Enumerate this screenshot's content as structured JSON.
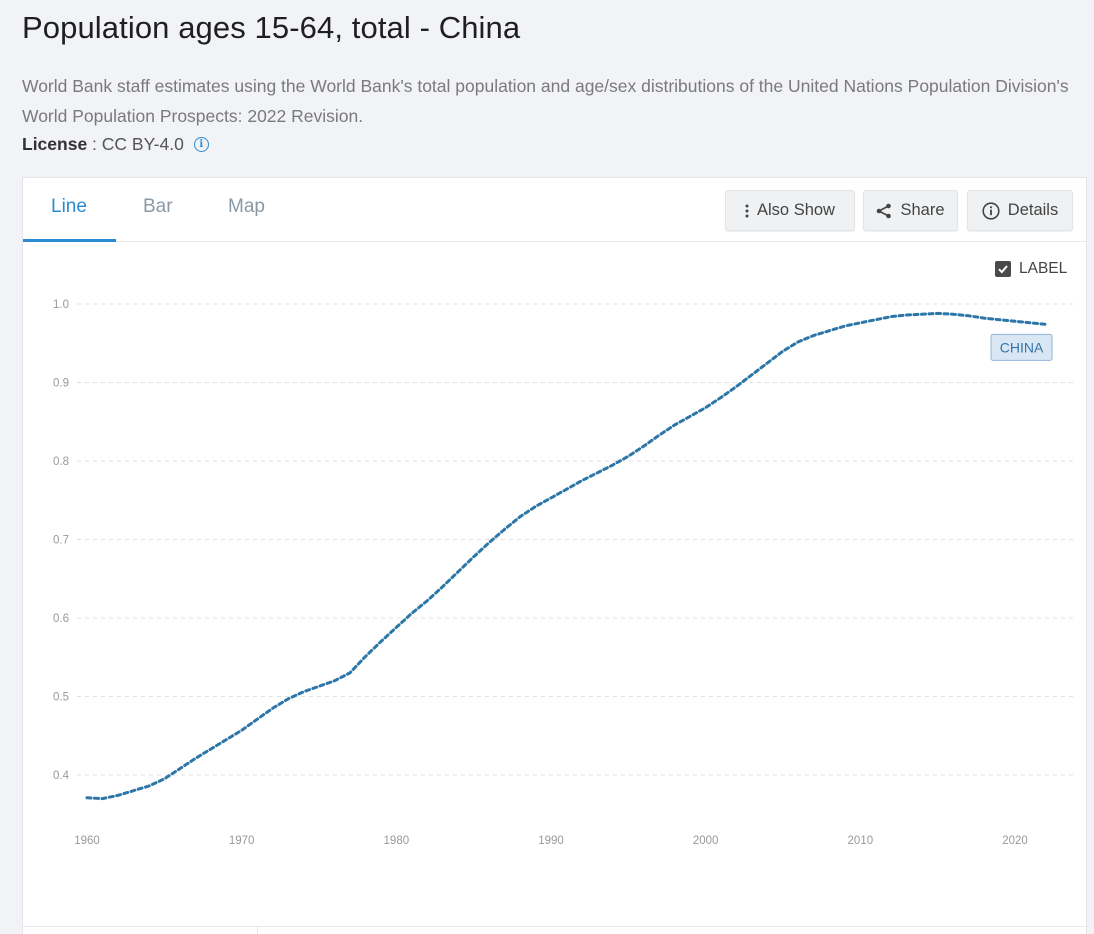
{
  "page": {
    "title": "Population ages 15-64, total - China",
    "description": "World Bank staff estimates using the World Bank's total population and age/sex distributions of the United Nations Population Division's World Population Prospects: 2022 Revision.",
    "license_label": "License",
    "license_sep": " : ",
    "license_value": "CC BY-4.0",
    "info_glyph": "i"
  },
  "tabs": [
    {
      "label": "Line",
      "active": true
    },
    {
      "label": "Bar",
      "active": false
    },
    {
      "label": "Map",
      "active": false
    }
  ],
  "toolbar": {
    "also_show": "Also Show",
    "share": "Share",
    "details": "Details"
  },
  "label_toggle": {
    "text": "LABEL",
    "checked": true
  },
  "colors": {
    "accent": "#2a8bd3",
    "series": "#2c76a8"
  },
  "chart_data": {
    "type": "line",
    "title": "",
    "xlabel": "",
    "ylabel": "",
    "xlim": [
      1960,
      2022
    ],
    "ylim": [
      0.34,
      1.03
    ],
    "yticks": [
      "0.4",
      "0.5",
      "0.6",
      "0.7",
      "0.8",
      "0.9",
      "1.0"
    ],
    "xticks": [
      "1960",
      "1970",
      "1980",
      "1990",
      "2000",
      "2010",
      "2020"
    ],
    "grid": true,
    "series": [
      {
        "name": "CHINA",
        "x": [
          1960,
          1961,
          1962,
          1963,
          1964,
          1965,
          1966,
          1967,
          1968,
          1969,
          1970,
          1971,
          1972,
          1973,
          1974,
          1975,
          1976,
          1977,
          1978,
          1979,
          1980,
          1981,
          1982,
          1983,
          1984,
          1985,
          1986,
          1987,
          1988,
          1989,
          1990,
          1991,
          1992,
          1993,
          1994,
          1995,
          1996,
          1997,
          1998,
          1999,
          2000,
          2001,
          2002,
          2003,
          2004,
          2005,
          2006,
          2007,
          2008,
          2009,
          2010,
          2011,
          2012,
          2013,
          2014,
          2015,
          2016,
          2017,
          2018,
          2019,
          2020,
          2021,
          2022
        ],
        "y": [
          0.371,
          0.37,
          0.374,
          0.38,
          0.386,
          0.395,
          0.408,
          0.421,
          0.433,
          0.445,
          0.457,
          0.471,
          0.485,
          0.497,
          0.506,
          0.513,
          0.52,
          0.53,
          0.551,
          0.57,
          0.588,
          0.606,
          0.622,
          0.64,
          0.659,
          0.678,
          0.696,
          0.713,
          0.729,
          0.742,
          0.753,
          0.764,
          0.775,
          0.785,
          0.795,
          0.806,
          0.819,
          0.833,
          0.846,
          0.857,
          0.868,
          0.881,
          0.895,
          0.91,
          0.925,
          0.94,
          0.952,
          0.96,
          0.966,
          0.972,
          0.976,
          0.98,
          0.984,
          0.986,
          0.987,
          0.988,
          0.987,
          0.985,
          0.982,
          0.98,
          0.978,
          0.976,
          0.974
        ]
      }
    ],
    "series_label": "CHINA"
  }
}
